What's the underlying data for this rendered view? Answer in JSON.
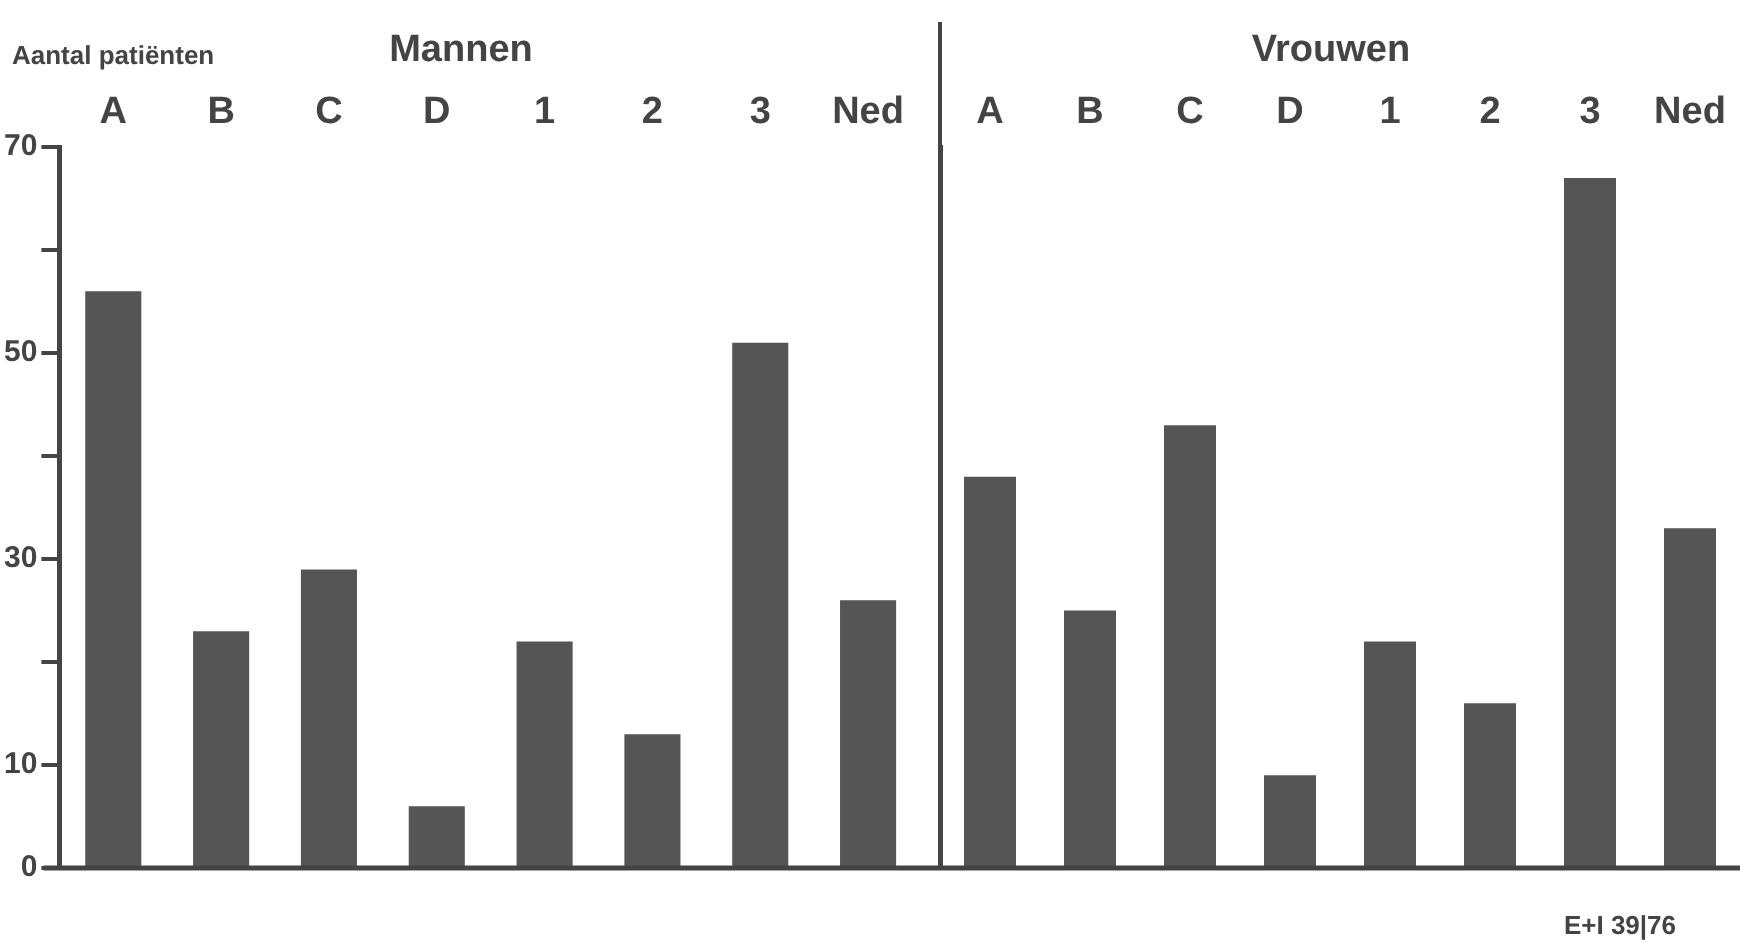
{
  "chart_data": [
    {
      "type": "bar",
      "title": "Mannen",
      "ylabel": "Aantal patiënten",
      "categories": [
        "A",
        "B",
        "C",
        "D",
        "1",
        "2",
        "3",
        "Ned"
      ],
      "values": [
        56,
        23,
        29,
        6,
        22,
        13,
        51,
        26
      ],
      "color": "#555555",
      "ylim": [
        0,
        70
      ],
      "yticks": [
        0,
        10,
        {
          "value": 20,
          "label": null
        },
        30,
        {
          "value": 40,
          "label": null
        },
        50,
        {
          "value": 60,
          "label": null
        },
        70
      ],
      "grid": false,
      "legend": false
    },
    {
      "type": "bar",
      "title": "Vrouwen",
      "categories": [
        "A",
        "B",
        "C",
        "D",
        "1",
        "2",
        "3",
        "Ned"
      ],
      "values": [
        38,
        25,
        43,
        9,
        22,
        16,
        67,
        33
      ],
      "color": "#555555",
      "ylim": [
        0,
        70
      ],
      "grid": false,
      "legend": false,
      "tick_labels": "x",
      "annotations": [
        "E+I 39|76"
      ]
    }
  ]
}
